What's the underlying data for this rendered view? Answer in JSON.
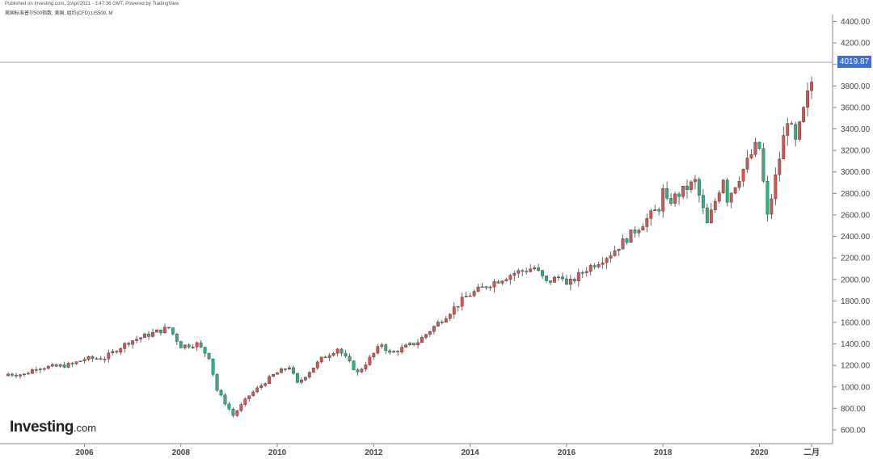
{
  "header": {
    "publish_line": "Published on Investing.com, 2/Apr/2021 - 3:47:36 GMT, Powered by TradingView",
    "symbol_line": "美国标准普尔500指数, 美国, 组约(CFD):US500, M"
  },
  "logo": {
    "main": "Investing",
    "suffix": ".com"
  },
  "colors": {
    "up": "#d9534f",
    "down": "#2db37d",
    "wick": "#444444",
    "price_badge": "#3d6de0",
    "price_line": "#9aa9c9"
  },
  "chart_data": {
    "type": "candlestick",
    "title": "",
    "xlabel": "",
    "ylabel": "",
    "interval": "monthly",
    "ylim": [
      500,
      4500
    ],
    "y_ticks": [
      600,
      800,
      1000,
      1200,
      1400,
      1600,
      1800,
      2000,
      2200,
      2400,
      2600,
      2800,
      3000,
      3200,
      3400,
      3600,
      3800,
      4000,
      4200,
      4400
    ],
    "y_tick_labels": [
      "600.00",
      "800.00",
      "1000.00",
      "1200.00",
      "1400.00",
      "1600.00",
      "1800.00",
      "2000.00",
      "2200.00",
      "2400.00",
      "2600.00",
      "2800.00",
      "3000.00",
      "3200.00",
      "3400.00",
      "3600.00",
      "3800.00",
      "4000.00",
      "4200.00",
      "4400.00"
    ],
    "x_ticks": [
      {
        "label": "2006",
        "date": "2006-01"
      },
      {
        "label": "2008",
        "date": "2008-01"
      },
      {
        "label": "2010",
        "date": "2010-01"
      },
      {
        "label": "2012",
        "date": "2012-01"
      },
      {
        "label": "2014",
        "date": "2014-01"
      },
      {
        "label": "2016",
        "date": "2016-01"
      },
      {
        "label": "2018",
        "date": "2018-01"
      },
      {
        "label": "2020",
        "date": "2020-01"
      },
      {
        "label": "二月",
        "date": "2021-02"
      }
    ],
    "last_price": 4019.87,
    "last_price_label": "4019.87",
    "close_points": [
      [
        "2004-06",
        1120
      ],
      [
        "2004-10",
        1115
      ],
      [
        "2005-01",
        1180
      ],
      [
        "2005-06",
        1190
      ],
      [
        "2005-10",
        1210
      ],
      [
        "2006-01",
        1260
      ],
      [
        "2006-06",
        1270
      ],
      [
        "2006-12",
        1420
      ],
      [
        "2007-06",
        1500
      ],
      [
        "2007-10",
        1550
      ],
      [
        "2008-01",
        1380
      ],
      [
        "2008-05",
        1400
      ],
      [
        "2008-08",
        1280
      ],
      [
        "2008-10",
        970
      ],
      [
        "2009-02",
        735
      ],
      [
        "2009-06",
        920
      ],
      [
        "2009-12",
        1110
      ],
      [
        "2010-04",
        1190
      ],
      [
        "2010-06",
        1030
      ],
      [
        "2010-12",
        1260
      ],
      [
        "2011-04",
        1360
      ],
      [
        "2011-09",
        1130
      ],
      [
        "2012-03",
        1400
      ],
      [
        "2012-05",
        1310
      ],
      [
        "2012-12",
        1420
      ],
      [
        "2013-12",
        1840
      ],
      [
        "2014-06",
        1960
      ],
      [
        "2014-12",
        2060
      ],
      [
        "2015-05",
        2110
      ],
      [
        "2015-08",
        1970
      ],
      [
        "2015-12",
        2040
      ],
      [
        "2016-01",
        1940
      ],
      [
        "2016-06",
        2100
      ],
      [
        "2016-12",
        2240
      ],
      [
        "2017-12",
        2670
      ],
      [
        "2018-01",
        2820
      ],
      [
        "2018-02",
        2710
      ],
      [
        "2018-09",
        2910
      ],
      [
        "2018-12",
        2510
      ],
      [
        "2019-04",
        2950
      ],
      [
        "2019-05",
        2750
      ],
      [
        "2019-12",
        3230
      ],
      [
        "2020-01",
        3220
      ],
      [
        "2020-03",
        2580
      ],
      [
        "2020-08",
        3500
      ],
      [
        "2020-10",
        3270
      ],
      [
        "2021-01",
        3710
      ],
      [
        "2021-03",
        3970
      ],
      [
        "2021-04",
        4020
      ]
    ]
  }
}
